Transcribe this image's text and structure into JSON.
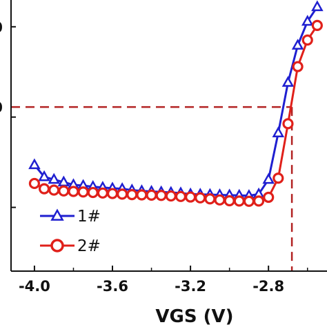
{
  "chart_data": {
    "type": "line",
    "xlabel": "VGS (V)",
    "xlim": [
      -4.12,
      -2.5
    ],
    "ylim": [
      0,
      1
    ],
    "x_ticks": [
      -4.0,
      -3.6,
      -3.2,
      -2.8
    ],
    "x_tick_labels": [
      "-4.0",
      "-3.6",
      "-3.2",
      "-2.8"
    ],
    "y_tick_labels_partial": [
      "0",
      "0"
    ],
    "reference_lines": {
      "horizontal_y": 0.618,
      "vertical_x": -2.68,
      "color": "#b22222"
    },
    "legend": {
      "position": "bottom-left"
    },
    "series": [
      {
        "name": "1#",
        "color": "#1f1fd0",
        "marker": "triangle",
        "x": [
          -4.0,
          -3.95,
          -3.9,
          -3.85,
          -3.8,
          -3.75,
          -3.7,
          -3.65,
          -3.6,
          -3.55,
          -3.5,
          -3.45,
          -3.4,
          -3.35,
          -3.3,
          -3.25,
          -3.2,
          -3.15,
          -3.1,
          -3.05,
          -3.0,
          -2.95,
          -2.9,
          -2.85,
          -2.8,
          -2.75,
          -2.7,
          -2.65,
          -2.6,
          -2.55
        ],
        "y": [
          0.4,
          0.355,
          0.345,
          0.335,
          0.325,
          0.322,
          0.318,
          0.315,
          0.312,
          0.31,
          0.305,
          0.302,
          0.3,
          0.298,
          0.296,
          0.294,
          0.29,
          0.289,
          0.288,
          0.287,
          0.286,
          0.285,
          0.284,
          0.29,
          0.345,
          0.52,
          0.71,
          0.85,
          0.94,
          0.995
        ]
      },
      {
        "name": "2#",
        "color": "#e0201a",
        "marker": "circle",
        "x": [
          -4.0,
          -3.95,
          -3.9,
          -3.85,
          -3.8,
          -3.75,
          -3.7,
          -3.65,
          -3.6,
          -3.55,
          -3.5,
          -3.45,
          -3.4,
          -3.35,
          -3.3,
          -3.25,
          -3.2,
          -3.15,
          -3.1,
          -3.05,
          -3.0,
          -2.95,
          -2.9,
          -2.85,
          -2.8,
          -2.75,
          -2.7,
          -2.65,
          -2.6,
          -2.55
        ],
        "y": [
          0.33,
          0.31,
          0.305,
          0.302,
          0.3,
          0.298,
          0.296,
          0.294,
          0.292,
          0.29,
          0.288,
          0.287,
          0.286,
          0.285,
          0.283,
          0.281,
          0.279,
          0.276,
          0.272,
          0.268,
          0.265,
          0.264,
          0.263,
          0.264,
          0.278,
          0.35,
          0.555,
          0.77,
          0.87,
          0.925
        ]
      }
    ]
  }
}
